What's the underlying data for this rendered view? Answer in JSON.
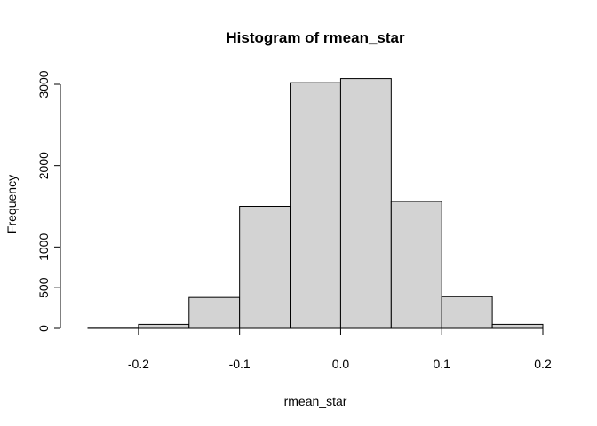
{
  "chart_data": {
    "type": "bar",
    "title": "Histogram of rmean_star",
    "xlabel": "rmean_star",
    "ylabel": "Frequency",
    "bin_edges": [
      -0.25,
      -0.2,
      -0.15,
      -0.1,
      -0.05,
      0.0,
      0.05,
      0.1,
      0.15,
      0.2
    ],
    "values": [
      2,
      50,
      380,
      1500,
      3020,
      3070,
      1560,
      390,
      50
    ],
    "xlim": [
      -0.25,
      0.2
    ],
    "ylim": [
      0,
      3000
    ],
    "x_ticks": [
      -0.2,
      -0.1,
      0.0,
      0.1,
      0.2
    ],
    "x_tick_labels": [
      "-0.2",
      "-0.1",
      "0.0",
      "0.1",
      "0.2"
    ],
    "y_ticks": [
      0,
      500,
      1000,
      2000,
      3000
    ],
    "y_tick_labels": [
      "0",
      "500",
      "1000",
      "2000",
      "3000"
    ],
    "grid": false,
    "bar_color": "#d3d3d3",
    "edge_color": "#000000"
  }
}
